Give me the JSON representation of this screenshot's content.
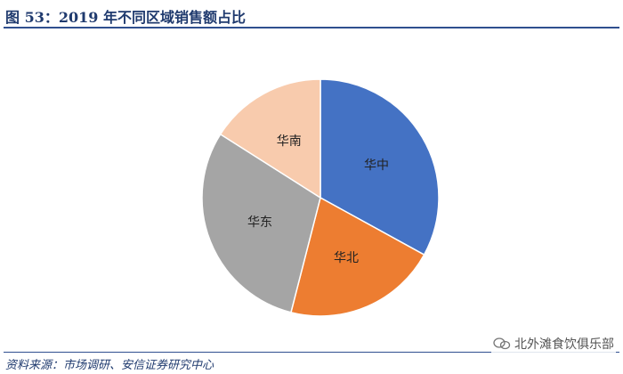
{
  "title": "图 53：2019 年不同区域销售额占比",
  "source": "资料来源：市场调研、安信证券研究中心",
  "watermark": "北外滩食饮俱乐部",
  "chart_data": {
    "type": "pie",
    "title": "",
    "start_angle_deg": 0,
    "direction": "clockwise",
    "slices": [
      {
        "label": "华中",
        "value": 33,
        "color": "#4472C4"
      },
      {
        "label": "华北",
        "value": 21,
        "color": "#ED7D31"
      },
      {
        "label": "华东",
        "value": 30,
        "color": "#A5A5A5"
      },
      {
        "label": "华南",
        "value": 16,
        "color": "#F8CBAD"
      }
    ]
  }
}
